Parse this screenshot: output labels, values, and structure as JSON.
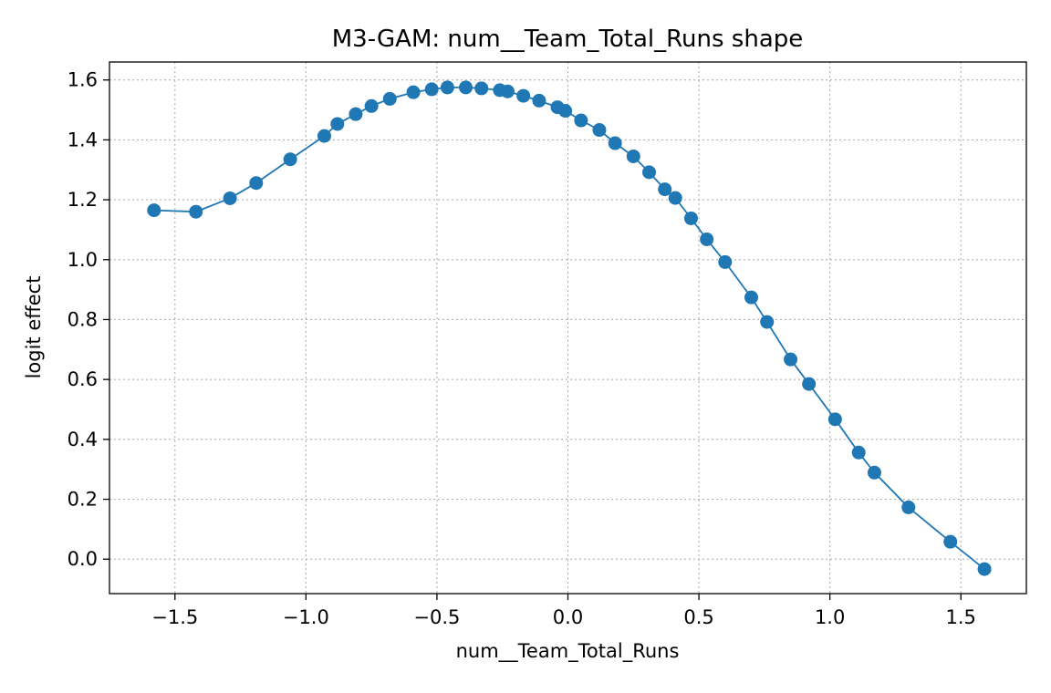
{
  "chart_data": {
    "type": "line",
    "title": "M3-GAM: num__Team_Total_Runs shape",
    "xlabel": "num__Team_Total_Runs",
    "ylabel": "logit effect",
    "xlim": [
      -1.75,
      1.75
    ],
    "ylim": [
      -0.115,
      1.66
    ],
    "xticks": [
      -1.5,
      -1.0,
      -0.5,
      0.0,
      0.5,
      1.0,
      1.5
    ],
    "xtick_labels": [
      "−1.5",
      "−1.0",
      "−0.5",
      "0.0",
      "0.5",
      "1.0",
      "1.5"
    ],
    "yticks": [
      0.0,
      0.2,
      0.4,
      0.6,
      0.8,
      1.0,
      1.2,
      1.4,
      1.6
    ],
    "ytick_labels": [
      "0.0",
      "0.2",
      "0.4",
      "0.6",
      "0.8",
      "1.0",
      "1.2",
      "1.4",
      "1.6"
    ],
    "grid": true,
    "marker": "circle",
    "series": [
      {
        "color": "#1f77b4",
        "x": [
          -1.58,
          -1.42,
          -1.29,
          -1.19,
          -1.06,
          -0.93,
          -0.88,
          -0.81,
          -0.75,
          -0.68,
          -0.59,
          -0.52,
          -0.46,
          -0.39,
          -0.33,
          -0.26,
          -0.23,
          -0.17,
          -0.11,
          -0.04,
          -0.01,
          0.05,
          0.12,
          0.18,
          0.25,
          0.31,
          0.37,
          0.41,
          0.47,
          0.53,
          0.6,
          0.7,
          0.76,
          0.85,
          0.92,
          1.02,
          1.11,
          1.17,
          1.3,
          1.46,
          1.59
        ],
        "y": [
          1.165,
          1.16,
          1.205,
          1.256,
          1.335,
          1.413,
          1.453,
          1.486,
          1.513,
          1.537,
          1.559,
          1.569,
          1.575,
          1.575,
          1.572,
          1.566,
          1.562,
          1.547,
          1.531,
          1.509,
          1.497,
          1.465,
          1.433,
          1.389,
          1.345,
          1.292,
          1.235,
          1.206,
          1.138,
          1.068,
          0.992,
          0.874,
          0.792,
          0.667,
          0.585,
          0.467,
          0.356,
          0.289,
          0.173,
          0.058,
          -0.033
        ]
      }
    ]
  }
}
